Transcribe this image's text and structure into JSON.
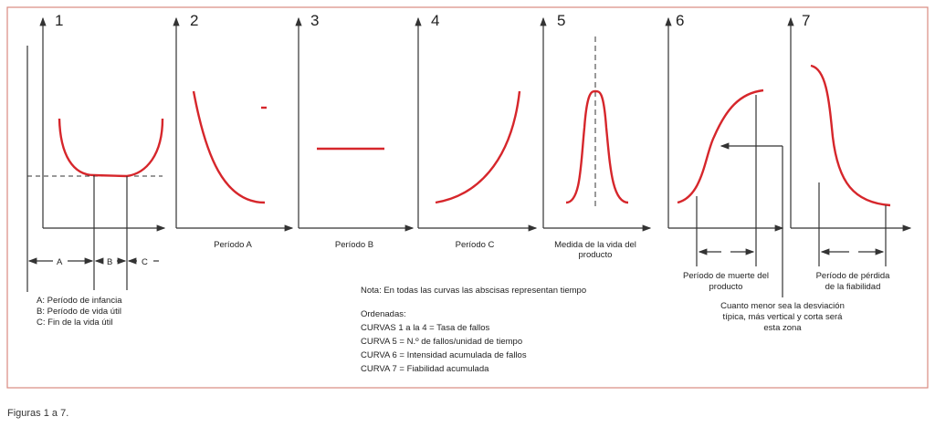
{
  "panels": [
    {
      "number": "1"
    },
    {
      "number": "2",
      "label": "Período A"
    },
    {
      "number": "3",
      "label": "Período B"
    },
    {
      "number": "4",
      "label": "Período C"
    },
    {
      "number": "5",
      "label_line1": "Medida de la vida del",
      "label_line2": "producto"
    },
    {
      "number": "6",
      "label_line1": "Período de muerte del",
      "label_line2": "producto"
    },
    {
      "number": "7",
      "label_line1": "Período de pérdida",
      "label_line2": "de la fiabilidad"
    }
  ],
  "zones": {
    "a": "A",
    "b": "B",
    "c": "C"
  },
  "legend1": [
    "A: Período de infancia",
    "B: Período de vida útil",
    "C: Fin de la vida útil"
  ],
  "note": "Nota: En todas las curvas las abscisas representan tiempo",
  "ordinates": [
    "Ordenadas:",
    "CURVAS 1 a la 4 = Tasa de fallos",
    "CURVA 5  = N.º de fallos/unidad de tiempo",
    "CURVA 6 = Intensidad acumulada de fallos",
    "CURVA 7 = Fiabilidad acumulada"
  ],
  "annotation": [
    "Cuanto menor sea la desviación",
    "típica, más vertical y corta será",
    "esta zona"
  ],
  "caption": "Figuras 1 a 7.",
  "colors": {
    "curve": "#d6262b",
    "frame": "#d98a80"
  }
}
